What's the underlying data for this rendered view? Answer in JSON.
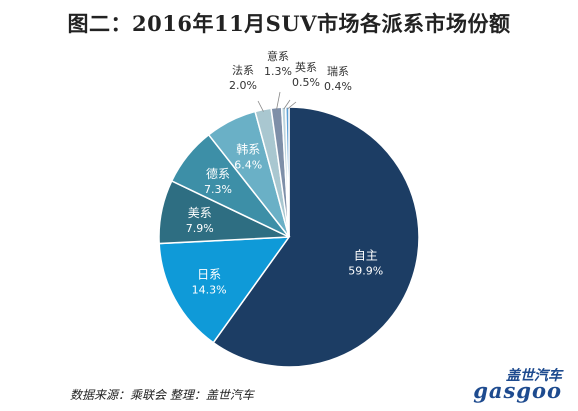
{
  "chart_data": {
    "type": "pie",
    "title": "图二：2016年11月SUV市场各派系市场份额",
    "slices": [
      {
        "label": "自主",
        "value": 59.9,
        "text": "59.9%",
        "color": "#1c3d64",
        "text_color": "#ffffff"
      },
      {
        "label": "日系",
        "value": 14.3,
        "text": "14.3%",
        "color": "#0f9ad8",
        "text_color": "#ffffff"
      },
      {
        "label": "美系",
        "value": 7.9,
        "text": "7.9%",
        "color": "#2e6e82",
        "text_color": "#ffffff"
      },
      {
        "label": "德系",
        "value": 7.3,
        "text": "7.3%",
        "color": "#3d8fa7",
        "text_color": "#ffffff"
      },
      {
        "label": "韩系",
        "value": 6.4,
        "text": "6.4%",
        "color": "#6ab0c6",
        "text_color": "#ffffff"
      },
      {
        "label": "法系",
        "value": 2.0,
        "text": "2.0%",
        "color": "#a9c7d0",
        "text_color": "#333333"
      },
      {
        "label": "意系",
        "value": 1.3,
        "text": "1.3%",
        "color": "#7e8fa8",
        "text_color": "#333333"
      },
      {
        "label": "英系",
        "value": 0.5,
        "text": "0.5%",
        "color": "#bcd4de",
        "text_color": "#333333"
      },
      {
        "label": "瑞系",
        "value": 0.4,
        "text": "0.4%",
        "color": "#5b9fd6",
        "text_color": "#333333"
      }
    ]
  },
  "footer": {
    "source": "数据来源：乘联会  整理：盖世汽车",
    "logo_cn": "盖世汽车",
    "logo_en": "gasgoo"
  }
}
